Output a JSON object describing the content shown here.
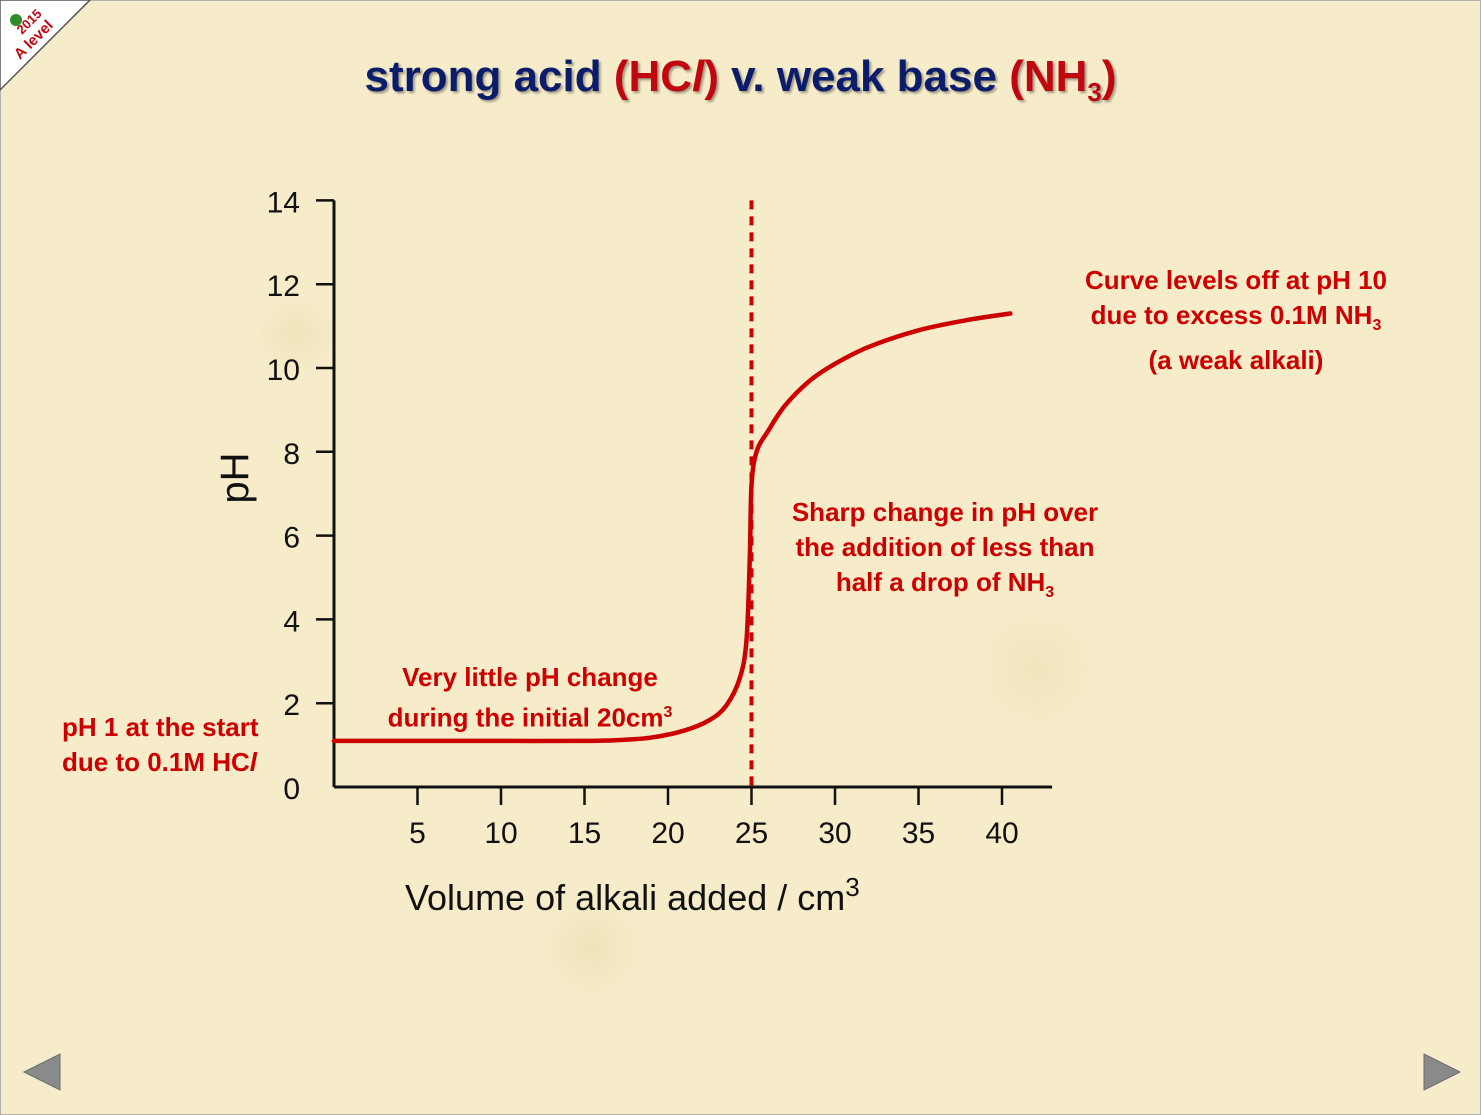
{
  "badge": {
    "line1": "2015",
    "line2": "A level"
  },
  "title": {
    "part1": "strong acid ",
    "acid": "(HC",
    "acid_italic": "l",
    "acid_close": ")",
    "part2": " v. weak base ",
    "base": "(NH",
    "base_sub": "3",
    "base_close": ")"
  },
  "annotations": {
    "start_line1": "pH 1 at the start",
    "start_line2": "due to 0.1M HC",
    "start_line2_italic": "l",
    "initial_line1": "Very little pH change",
    "initial_line2": "during the initial 20cm",
    "initial_sup": "3",
    "sharp_line1": "Sharp change in pH over",
    "sharp_line2": "the addition of less than",
    "sharp_line3": "half a drop of NH",
    "sharp_sub": "3",
    "level_line1": "Curve levels off at pH 10",
    "level_line2": "due to excess 0.1M NH",
    "level_sub": "3",
    "level_line3": "(a weak alkali)"
  },
  "chart_data": {
    "type": "line",
    "xlabel": "Volume of alkali added / cm",
    "xlabel_sup": "3",
    "ylabel": "pH",
    "xlim": [
      0,
      43
    ],
    "ylim": [
      0,
      14
    ],
    "x_ticks": [
      5,
      10,
      15,
      20,
      25,
      30,
      35,
      40
    ],
    "y_ticks": [
      0,
      2,
      4,
      6,
      8,
      10,
      12,
      14
    ],
    "equivalence_x": 25,
    "series": [
      {
        "color": "#cc0000",
        "points": [
          [
            0,
            1.1
          ],
          [
            5,
            1.1
          ],
          [
            10,
            1.1
          ],
          [
            15,
            1.1
          ],
          [
            17,
            1.12
          ],
          [
            19,
            1.18
          ],
          [
            21,
            1.35
          ],
          [
            22.5,
            1.6
          ],
          [
            23.5,
            1.95
          ],
          [
            24.3,
            2.6
          ],
          [
            24.7,
            3.5
          ],
          [
            24.9,
            5.5
          ],
          [
            25.0,
            7.2
          ],
          [
            25.3,
            8.0
          ],
          [
            26,
            8.5
          ],
          [
            27,
            9.1
          ],
          [
            28.5,
            9.7
          ],
          [
            30,
            10.1
          ],
          [
            32,
            10.5
          ],
          [
            35,
            10.9
          ],
          [
            38,
            11.15
          ],
          [
            40.5,
            11.3
          ]
        ]
      }
    ],
    "grid": false
  },
  "colors": {
    "accent_red": "#cc0000",
    "title_blue": "#0b1c6b",
    "axis": "#111111"
  },
  "nav": {
    "prev_icon": "triangle-left",
    "next_icon": "triangle-right"
  }
}
